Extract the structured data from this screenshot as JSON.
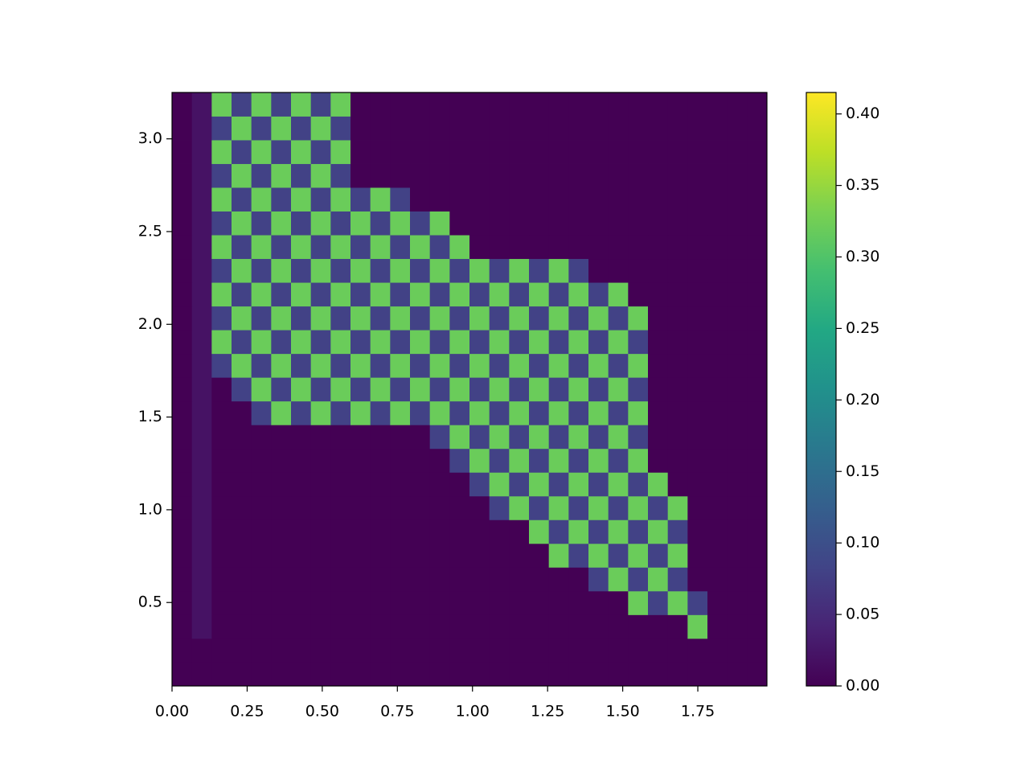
{
  "chart_data": {
    "type": "heatmap",
    "colormap": "viridis",
    "xlim": [
      0,
      1.98
    ],
    "ylim": [
      0.05,
      3.25
    ],
    "clim": [
      0,
      0.415
    ],
    "xticks": [
      {
        "value": 0,
        "label": "0.00"
      },
      0.25,
      {
        "value": 0.5,
        "label": "0.50"
      },
      0.75,
      {
        "value": 1,
        "label": "1.00"
      },
      1.25,
      {
        "value": 1.5,
        "label": "1.50"
      },
      1.75
    ],
    "yticks": [
      0.5,
      {
        "value": 1,
        "label": "1.0"
      },
      1.5,
      {
        "value": 2,
        "label": "2.0"
      },
      2.5,
      {
        "value": 3,
        "label": "3.0"
      }
    ],
    "cticks": [
      {
        "value": 0,
        "label": "0.00"
      },
      0.05,
      {
        "value": 0.1,
        "label": "0.10"
      },
      0.15,
      {
        "value": 0.2,
        "label": "0.20"
      },
      0.25,
      {
        "value": 0.3,
        "label": "0.30"
      },
      0.35,
      {
        "value": 0.4,
        "label": "0.40"
      }
    ],
    "z": [
      [
        0,
        0,
        0,
        0,
        0,
        0,
        0,
        0,
        0,
        0,
        0,
        0,
        0,
        0,
        0,
        0,
        0,
        0,
        0,
        0,
        0,
        0,
        0,
        0,
        0,
        0,
        0,
        0,
        0,
        0
      ],
      [
        0,
        0,
        0,
        0,
        0,
        0,
        0,
        0,
        0,
        0,
        0,
        0,
        0,
        0,
        0,
        0,
        0,
        0,
        0,
        0,
        0,
        0,
        0,
        0,
        0,
        0,
        0,
        0,
        0,
        0
      ],
      [
        0,
        0.02,
        0,
        0,
        0,
        0,
        0,
        0,
        0,
        0,
        0,
        0,
        0,
        0,
        0,
        0,
        0,
        0,
        0,
        0,
        0,
        0,
        0,
        0,
        0,
        0,
        0.32,
        0,
        0,
        0
      ],
      [
        0,
        0.02,
        0,
        0,
        0,
        0,
        0,
        0,
        0,
        0,
        0,
        0,
        0,
        0,
        0,
        0,
        0,
        0,
        0,
        0,
        0,
        0,
        0,
        0.32,
        0.08,
        0.32,
        0.08,
        0,
        0,
        0
      ],
      [
        0,
        0.02,
        0,
        0,
        0,
        0,
        0,
        0,
        0,
        0,
        0,
        0,
        0,
        0,
        0,
        0,
        0,
        0,
        0,
        0,
        0,
        0.08,
        0.32,
        0.08,
        0.32,
        0.08,
        0,
        0,
        0,
        0
      ],
      [
        0,
        0.02,
        0,
        0,
        0,
        0,
        0,
        0,
        0,
        0,
        0,
        0,
        0,
        0,
        0,
        0,
        0,
        0,
        0,
        0.32,
        0.08,
        0.32,
        0.08,
        0.32,
        0.08,
        0.32,
        0,
        0,
        0,
        0
      ],
      [
        0,
        0.02,
        0,
        0,
        0,
        0,
        0,
        0,
        0,
        0,
        0,
        0,
        0,
        0,
        0,
        0,
        0,
        0,
        0.32,
        0.08,
        0.32,
        0.08,
        0.32,
        0.08,
        0.32,
        0.08,
        0,
        0,
        0,
        0
      ],
      [
        0,
        0.02,
        0,
        0,
        0,
        0,
        0,
        0,
        0,
        0,
        0,
        0,
        0,
        0,
        0,
        0,
        0.08,
        0.32,
        0.08,
        0.32,
        0.08,
        0.32,
        0.08,
        0.32,
        0.08,
        0.32,
        0,
        0,
        0,
        0
      ],
      [
        0,
        0.02,
        0,
        0,
        0,
        0,
        0,
        0,
        0,
        0,
        0,
        0,
        0,
        0,
        0,
        0.08,
        0.32,
        0.08,
        0.32,
        0.08,
        0.32,
        0.08,
        0.32,
        0.08,
        0.32,
        0,
        0,
        0,
        0,
        0
      ],
      [
        0,
        0.02,
        0,
        0,
        0,
        0,
        0,
        0,
        0,
        0,
        0,
        0,
        0,
        0,
        0.08,
        0.32,
        0.08,
        0.32,
        0.08,
        0.32,
        0.08,
        0.32,
        0.08,
        0.32,
        0,
        0,
        0,
        0,
        0,
        0
      ],
      [
        0,
        0.02,
        0,
        0,
        0,
        0,
        0,
        0,
        0,
        0,
        0,
        0,
        0,
        0.08,
        0.32,
        0.08,
        0.32,
        0.08,
        0.32,
        0.08,
        0.32,
        0.08,
        0.32,
        0.08,
        0,
        0,
        0,
        0,
        0,
        0
      ],
      [
        0,
        0.02,
        0,
        0,
        0.08,
        0.32,
        0.08,
        0.32,
        0.08,
        0.32,
        0.08,
        0.32,
        0.08,
        0.32,
        0.08,
        0.32,
        0.08,
        0.32,
        0.08,
        0.32,
        0.08,
        0.32,
        0.08,
        0.32,
        0,
        0,
        0,
        0,
        0,
        0
      ],
      [
        0,
        0.02,
        0,
        0.08,
        0.32,
        0.08,
        0.32,
        0.08,
        0.32,
        0.08,
        0.32,
        0.08,
        0.32,
        0.08,
        0.32,
        0.08,
        0.32,
        0.08,
        0.32,
        0.08,
        0.32,
        0.08,
        0.32,
        0.08,
        0,
        0,
        0,
        0,
        0,
        0
      ],
      [
        0,
        0.02,
        0.08,
        0.32,
        0.08,
        0.32,
        0.08,
        0.32,
        0.08,
        0.32,
        0.08,
        0.32,
        0.08,
        0.32,
        0.08,
        0.32,
        0.08,
        0.32,
        0.08,
        0.32,
        0.08,
        0.32,
        0.08,
        0.32,
        0,
        0,
        0,
        0,
        0,
        0
      ],
      [
        0,
        0.02,
        0.32,
        0.08,
        0.32,
        0.08,
        0.32,
        0.08,
        0.32,
        0.08,
        0.32,
        0.08,
        0.32,
        0.08,
        0.32,
        0.08,
        0.32,
        0.08,
        0.32,
        0.08,
        0.32,
        0.08,
        0.32,
        0.08,
        0,
        0,
        0,
        0,
        0,
        0
      ],
      [
        0,
        0.02,
        0.08,
        0.32,
        0.08,
        0.32,
        0.08,
        0.32,
        0.08,
        0.32,
        0.08,
        0.32,
        0.08,
        0.32,
        0.08,
        0.32,
        0.08,
        0.32,
        0.08,
        0.32,
        0.08,
        0.32,
        0.08,
        0.32,
        0,
        0,
        0,
        0,
        0,
        0
      ],
      [
        0,
        0.02,
        0.32,
        0.08,
        0.32,
        0.08,
        0.32,
        0.08,
        0.32,
        0.08,
        0.32,
        0.08,
        0.32,
        0.08,
        0.32,
        0.08,
        0.32,
        0.08,
        0.32,
        0.08,
        0.32,
        0.08,
        0.32,
        0,
        0,
        0,
        0,
        0,
        0,
        0
      ],
      [
        0,
        0.02,
        0.08,
        0.32,
        0.08,
        0.32,
        0.08,
        0.32,
        0.08,
        0.32,
        0.08,
        0.32,
        0.08,
        0.32,
        0.08,
        0.32,
        0.08,
        0.32,
        0.08,
        0.32,
        0.08,
        0,
        0,
        0,
        0,
        0,
        0,
        0,
        0,
        0
      ],
      [
        0,
        0.02,
        0.32,
        0.08,
        0.32,
        0.08,
        0.32,
        0.08,
        0.32,
        0.08,
        0.32,
        0.08,
        0.32,
        0.08,
        0.32,
        0,
        0,
        0,
        0,
        0,
        0,
        0,
        0,
        0,
        0,
        0,
        0,
        0,
        0,
        0
      ],
      [
        0,
        0.02,
        0.08,
        0.32,
        0.08,
        0.32,
        0.08,
        0.32,
        0.08,
        0.32,
        0.08,
        0.32,
        0.08,
        0.32,
        0,
        0,
        0,
        0,
        0,
        0,
        0,
        0,
        0,
        0,
        0,
        0,
        0,
        0,
        0,
        0
      ],
      [
        0,
        0.02,
        0.32,
        0.08,
        0.32,
        0.08,
        0.32,
        0.08,
        0.32,
        0.08,
        0.32,
        0.08,
        0,
        0,
        0,
        0,
        0,
        0,
        0,
        0,
        0,
        0,
        0,
        0,
        0,
        0,
        0,
        0,
        0,
        0
      ],
      [
        0,
        0.02,
        0.08,
        0.32,
        0.08,
        0.32,
        0.08,
        0.32,
        0.08,
        0,
        0,
        0,
        0,
        0,
        0,
        0,
        0,
        0,
        0,
        0,
        0,
        0,
        0,
        0,
        0,
        0,
        0,
        0,
        0,
        0
      ],
      [
        0,
        0.02,
        0.32,
        0.08,
        0.32,
        0.08,
        0.32,
        0.08,
        0.32,
        0,
        0,
        0,
        0,
        0,
        0,
        0,
        0,
        0,
        0,
        0,
        0,
        0,
        0,
        0,
        0,
        0,
        0,
        0,
        0,
        0
      ],
      [
        0,
        0.02,
        0.08,
        0.32,
        0.08,
        0.32,
        0.08,
        0.32,
        0.08,
        0,
        0,
        0,
        0,
        0,
        0,
        0,
        0,
        0,
        0,
        0,
        0,
        0,
        0,
        0,
        0,
        0,
        0,
        0,
        0,
        0
      ],
      [
        0,
        0.02,
        0.32,
        0.08,
        0.32,
        0.08,
        0.32,
        0.08,
        0.32,
        0,
        0,
        0,
        0,
        0,
        0,
        0,
        0,
        0,
        0,
        0,
        0,
        0,
        0,
        0,
        0,
        0,
        0,
        0,
        0,
        0
      ]
    ]
  }
}
